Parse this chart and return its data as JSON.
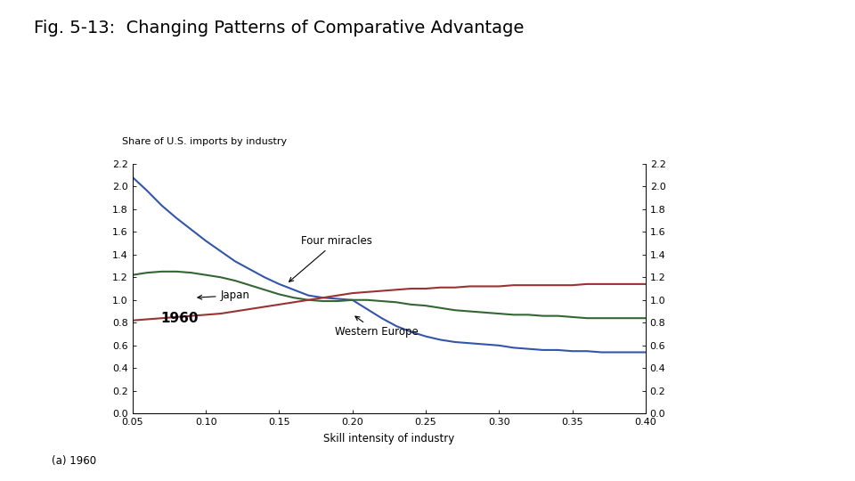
{
  "title": "Fig. 5-13:  Changing Patterns of Comparative Advantage",
  "title_fontsize": 14,
  "ylabel_left": "Share of U.S. imports by industry",
  "xlabel": "Skill intensity of industry",
  "sublabel": "(a) 1960",
  "inner_label": "1960",
  "ylim": [
    0.0,
    2.2
  ],
  "xlim": [
    0.05,
    0.4
  ],
  "yticks": [
    0.0,
    0.2,
    0.4,
    0.6,
    0.8,
    1.0,
    1.2,
    1.4,
    1.6,
    1.8,
    2.0,
    2.2
  ],
  "xticks": [
    0.05,
    0.1,
    0.15,
    0.2,
    0.25,
    0.3,
    0.35,
    0.4
  ],
  "color_blue": "#3355aa",
  "color_green": "#336633",
  "color_red": "#993333",
  "label_japan": "Japan",
  "label_four": "Four miracles",
  "label_western": "Western Europe",
  "x_blue": [
    0.05,
    0.06,
    0.07,
    0.08,
    0.09,
    0.1,
    0.11,
    0.12,
    0.13,
    0.14,
    0.15,
    0.16,
    0.17,
    0.18,
    0.19,
    0.2,
    0.21,
    0.22,
    0.23,
    0.24,
    0.25,
    0.26,
    0.27,
    0.28,
    0.29,
    0.3,
    0.31,
    0.32,
    0.33,
    0.34,
    0.35,
    0.36,
    0.37,
    0.38,
    0.39,
    0.4
  ],
  "y_blue": [
    2.08,
    1.96,
    1.83,
    1.72,
    1.62,
    1.52,
    1.43,
    1.34,
    1.27,
    1.2,
    1.14,
    1.09,
    1.04,
    1.02,
    1.01,
    1.0,
    0.92,
    0.84,
    0.77,
    0.72,
    0.68,
    0.65,
    0.63,
    0.62,
    0.61,
    0.6,
    0.58,
    0.57,
    0.56,
    0.56,
    0.55,
    0.55,
    0.54,
    0.54,
    0.54,
    0.54
  ],
  "x_green": [
    0.05,
    0.06,
    0.07,
    0.08,
    0.09,
    0.1,
    0.11,
    0.12,
    0.13,
    0.14,
    0.15,
    0.16,
    0.17,
    0.18,
    0.19,
    0.2,
    0.21,
    0.22,
    0.23,
    0.24,
    0.25,
    0.26,
    0.27,
    0.28,
    0.29,
    0.3,
    0.31,
    0.32,
    0.33,
    0.34,
    0.35,
    0.36,
    0.37,
    0.38,
    0.39,
    0.4
  ],
  "y_green": [
    1.22,
    1.24,
    1.25,
    1.25,
    1.24,
    1.22,
    1.2,
    1.17,
    1.13,
    1.09,
    1.05,
    1.02,
    1.0,
    0.99,
    0.99,
    1.0,
    1.0,
    0.99,
    0.98,
    0.96,
    0.95,
    0.93,
    0.91,
    0.9,
    0.89,
    0.88,
    0.87,
    0.87,
    0.86,
    0.86,
    0.85,
    0.84,
    0.84,
    0.84,
    0.84,
    0.84
  ],
  "x_red": [
    0.05,
    0.06,
    0.07,
    0.08,
    0.09,
    0.1,
    0.11,
    0.12,
    0.13,
    0.14,
    0.15,
    0.16,
    0.17,
    0.18,
    0.19,
    0.2,
    0.21,
    0.22,
    0.23,
    0.24,
    0.25,
    0.26,
    0.27,
    0.28,
    0.29,
    0.3,
    0.31,
    0.32,
    0.33,
    0.34,
    0.35,
    0.36,
    0.37,
    0.38,
    0.39,
    0.4
  ],
  "y_red": [
    0.82,
    0.83,
    0.84,
    0.85,
    0.86,
    0.87,
    0.88,
    0.9,
    0.92,
    0.94,
    0.96,
    0.98,
    1.0,
    1.02,
    1.04,
    1.06,
    1.07,
    1.08,
    1.09,
    1.1,
    1.1,
    1.11,
    1.11,
    1.12,
    1.12,
    1.12,
    1.13,
    1.13,
    1.13,
    1.13,
    1.13,
    1.14,
    1.14,
    1.14,
    1.14,
    1.14
  ]
}
